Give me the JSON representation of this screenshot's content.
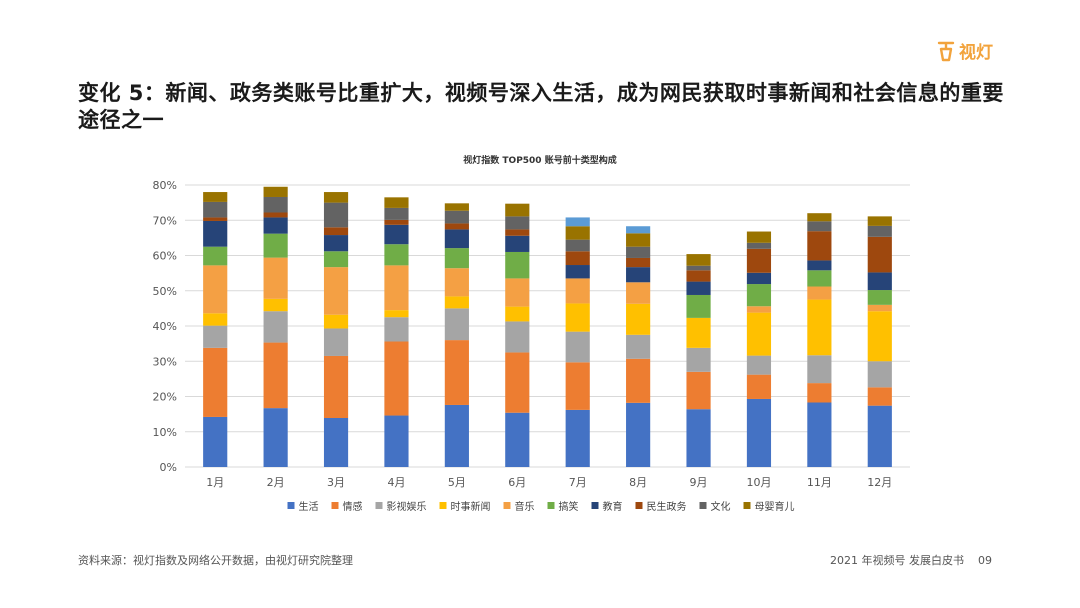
{
  "header": {
    "brand": "视灯",
    "title": "变化 5：新闻、政务类账号比重扩大，视频号深入生活，成为网民获取时事新闻和社会信息的重要途径之一"
  },
  "footer": {
    "source": "资料来源：视灯指数及网络公开数据，由视灯研究院整理",
    "report": "2021 年视频号 发展白皮书",
    "page": "09"
  },
  "chart_data": {
    "type": "bar",
    "stacked": true,
    "title": "视灯指数 TOP500 账号前十类型构成",
    "categories": [
      "1月",
      "2月",
      "3月",
      "4月",
      "5月",
      "6月",
      "7月",
      "8月",
      "9月",
      "10月",
      "11月",
      "12月"
    ],
    "y_ticks": [
      "0%",
      "10%",
      "20%",
      "30%",
      "40%",
      "50%",
      "60%",
      "70%",
      "80%"
    ],
    "ylim": [
      0,
      80
    ],
    "grid": true,
    "legend_position": "bottom",
    "series": [
      {
        "name": "生活",
        "color": "#4472c4",
        "values": [
          14.2,
          16.7,
          13.9,
          14.6,
          17.6,
          15.4,
          16.2,
          18.2,
          16.4,
          19.3,
          18.3,
          17.4
        ]
      },
      {
        "name": "情感",
        "color": "#ed7d31",
        "values": [
          19.6,
          18.6,
          17.6,
          21.0,
          18.4,
          17.1,
          13.5,
          12.5,
          10.6,
          6.9,
          5.5,
          5.2
        ]
      },
      {
        "name": "影视娱乐",
        "color": "#a5a5a5",
        "values": [
          6.3,
          8.9,
          7.8,
          6.9,
          9.0,
          8.8,
          8.7,
          6.8,
          6.8,
          5.4,
          7.9,
          7.4
        ]
      },
      {
        "name": "时事新闻",
        "color": "#ffc000",
        "values": [
          3.5,
          3.5,
          3.9,
          2.0,
          3.4,
          4.2,
          8.0,
          8.8,
          8.5,
          12.2,
          15.8,
          14.2
        ]
      },
      {
        "name": "音乐",
        "color": "#f4a044",
        "values": [
          13.6,
          11.7,
          13.5,
          12.7,
          8.0,
          8.0,
          7.1,
          6.1,
          0,
          1.8,
          3.7,
          1.8
        ]
      },
      {
        "name": "搞笑",
        "color": "#70ad47",
        "values": [
          5.3,
          6.8,
          4.5,
          6.0,
          5.7,
          7.5,
          0,
          0,
          6.5,
          6.3,
          4.6,
          4.2
        ]
      },
      {
        "name": "教育",
        "color": "#264478",
        "values": [
          7.3,
          4.6,
          4.6,
          5.5,
          5.3,
          4.6,
          3.8,
          4.3,
          3.8,
          3.2,
          2.8,
          5.0
        ]
      },
      {
        "name": "民生政务",
        "color": "#9e480e",
        "values": [
          1.0,
          1.4,
          2.2,
          1.4,
          1.7,
          1.8,
          3.9,
          2.6,
          3.2,
          6.8,
          8.3,
          10.1
        ]
      },
      {
        "name": "文化",
        "color": "#636363",
        "values": [
          4.4,
          4.4,
          7.0,
          3.4,
          3.6,
          3.7,
          3.3,
          3.2,
          1.3,
          1.7,
          2.8,
          3.1
        ]
      },
      {
        "name": "母婴育儿",
        "color": "#997300",
        "values": [
          2.8,
          2.9,
          3.0,
          3.0,
          2.1,
          3.6,
          3.8,
          3.8,
          3.3,
          3.2,
          2.3,
          2.7
        ]
      },
      {
        "name": "",
        "color": "#5b9bd5",
        "legend": false,
        "values": [
          0,
          0,
          0,
          0,
          0,
          0,
          2.5,
          2.0,
          0,
          0,
          0,
          0
        ]
      }
    ]
  }
}
